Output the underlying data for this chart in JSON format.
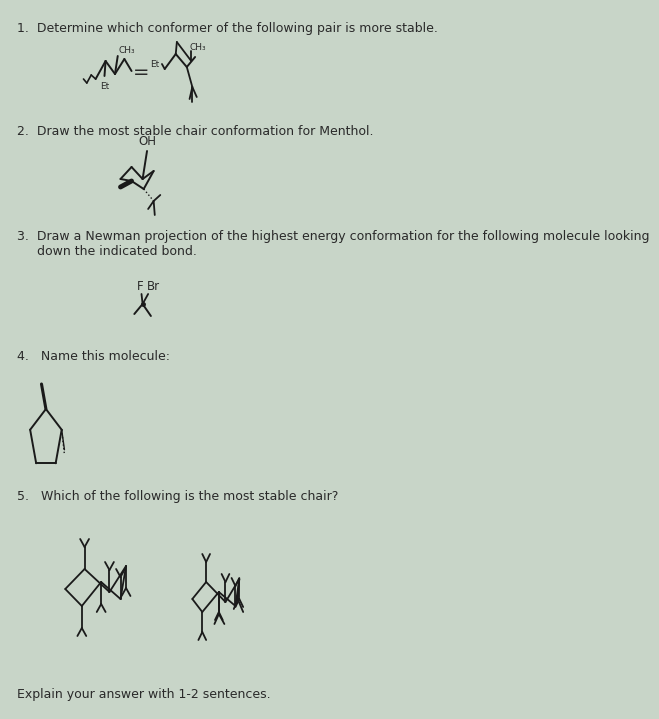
{
  "bg_color": "#c8d5c8",
  "text_color": "#2a2a2a",
  "line_color": "#1a1a1a",
  "title_fontsize": 9.5,
  "label_fontsize": 8,
  "questions": [
    "1.  Determine which conformer of the following pair is more stable.",
    "2.  Draw the most stable chair conformation for Menthol.",
    "3.  Draw a Newman projection of the highest energy conformation for the following molecule looking\n     down the indicated bond.",
    "4.   Name this molecule:",
    "5.   Which of the following is the most stable chair?",
    "Explain your answer with 1-2 sentences."
  ]
}
